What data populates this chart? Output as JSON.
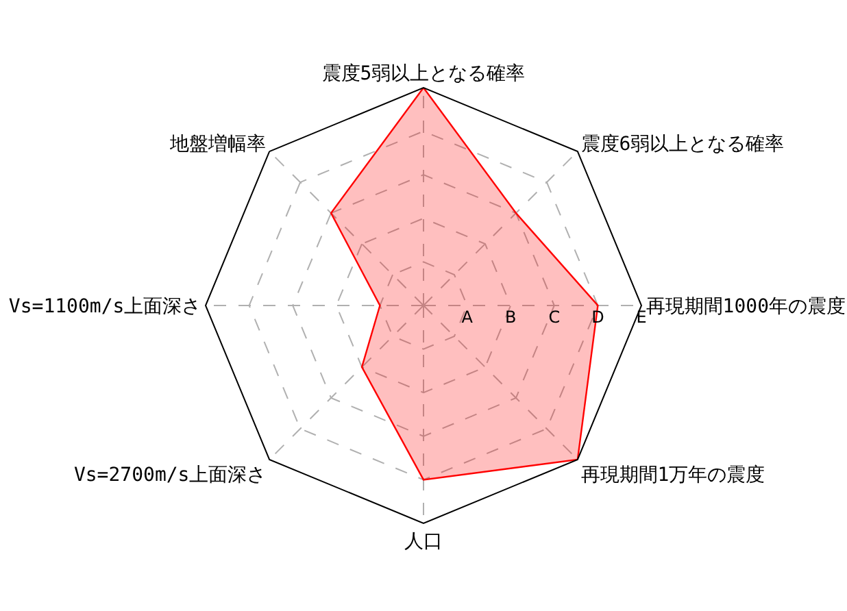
{
  "chart_data": {
    "type": "radar",
    "categories": [
      "震度5弱以上となる確率",
      "震度6弱以上となる確率",
      "再現期間1000年の震度",
      "再現期間1万年の震度",
      "人口",
      "Vs=2700m/s上面深さ",
      "Vs=1100m/s上面深さ",
      "地盤増幅率"
    ],
    "series": [
      {
        "color": "#ff0000",
        "values": [
          5,
          3,
          4,
          5,
          4,
          2,
          1,
          3
        ]
      }
    ],
    "ylim": [
      0,
      5
    ],
    "yticks": [
      {
        "value": 1,
        "label": "A"
      },
      {
        "value": 2,
        "label": "B"
      },
      {
        "value": 3,
        "label": "C"
      },
      {
        "value": 4,
        "label": "D"
      },
      {
        "value": 5,
        "label": "E"
      }
    ],
    "grid": true,
    "marker": "none",
    "line_style": "solid"
  }
}
